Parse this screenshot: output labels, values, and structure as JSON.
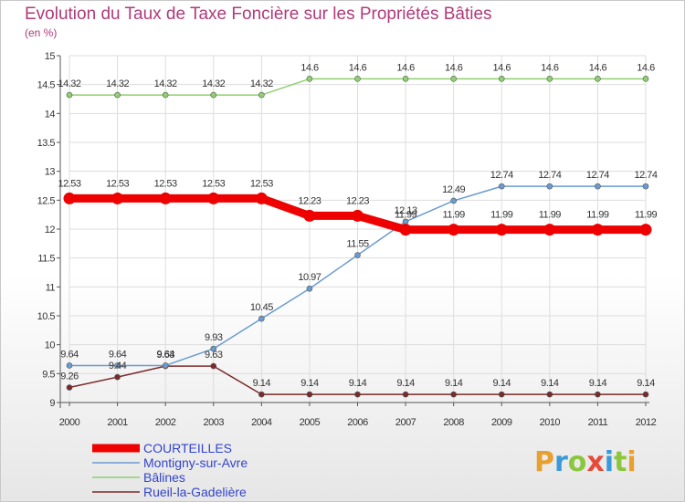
{
  "title": "Evolution du Taux de Taxe Foncière sur les Propriétés Bâties",
  "unit": "(en %)",
  "logo": {
    "letters": [
      "P",
      "r",
      "o",
      "x",
      "i",
      "t",
      "i"
    ],
    "colors": [
      "#e8a030",
      "#3a9ad9",
      "#8cc63f",
      "#e84a3a",
      "#3a9ad9",
      "#8cc63f",
      "#e8a030"
    ]
  },
  "chart_data": {
    "type": "line",
    "title": "Evolution du Taux de Taxe Foncière sur les Propriétés Bâties",
    "ylabel": "(en %)",
    "xlabel": "",
    "x": [
      "2000",
      "2001",
      "2002",
      "2003",
      "2004",
      "2005",
      "2006",
      "2007",
      "2008",
      "2009",
      "2010",
      "2011",
      "2012"
    ],
    "ylim": [
      9,
      15
    ],
    "yticks": [
      "9",
      "9.5",
      "10",
      "10.5",
      "11",
      "11.5",
      "12",
      "12.5",
      "13",
      "13.5",
      "14",
      "14.5",
      "15"
    ],
    "grid": true,
    "series": [
      {
        "name": "COURTEILLES",
        "color": "#ee0000",
        "values": [
          12.53,
          12.53,
          12.53,
          12.53,
          12.53,
          12.23,
          12.23,
          11.99,
          11.99,
          11.99,
          11.99,
          11.99,
          11.99
        ],
        "labels": [
          "12.53",
          "12.53",
          "12.53",
          "12.53",
          "12.53",
          "12.23",
          "12.23",
          "11.99",
          "11.99",
          "11.99",
          "11.99",
          "11.99",
          "11.99"
        ]
      },
      {
        "name": "Montigny-sur-Avre",
        "color": "#6a9cd0",
        "values": [
          9.64,
          9.64,
          9.64,
          9.93,
          10.45,
          10.97,
          11.55,
          12.13,
          12.49,
          12.74,
          12.74,
          12.74,
          12.74
        ],
        "labels": [
          "9.64",
          "9.64",
          "9.64",
          "9.93",
          "10.45",
          "10.97",
          "11.55",
          "12.13",
          "12.49",
          "12.74",
          "12.74",
          "12.74",
          "12.74"
        ]
      },
      {
        "name": "Bâlines",
        "color": "#90d070",
        "values": [
          14.32,
          14.32,
          14.32,
          14.32,
          14.32,
          14.6,
          14.6,
          14.6,
          14.6,
          14.6,
          14.6,
          14.6,
          14.6
        ],
        "labels": [
          "14.32",
          "14.32",
          "14.32",
          "14.32",
          "14.32",
          "14.6",
          "14.6",
          "14.6",
          "14.6",
          "14.6",
          "14.6",
          "14.6",
          "14.6"
        ]
      },
      {
        "name": "Rueil-la-Gadelière",
        "color": "#7a2a2a",
        "values": [
          9.26,
          9.44,
          9.63,
          9.63,
          9.14,
          9.14,
          9.14,
          9.14,
          9.14,
          9.14,
          9.14,
          9.14,
          9.14
        ],
        "labels": [
          "9.26",
          "9.44",
          "9.63",
          "9.63",
          "9.14",
          "9.14",
          "9.14",
          "9.14",
          "9.14",
          "9.14",
          "9.14",
          "9.14",
          "9.14"
        ]
      }
    ],
    "legend_position": "bottom-left"
  }
}
